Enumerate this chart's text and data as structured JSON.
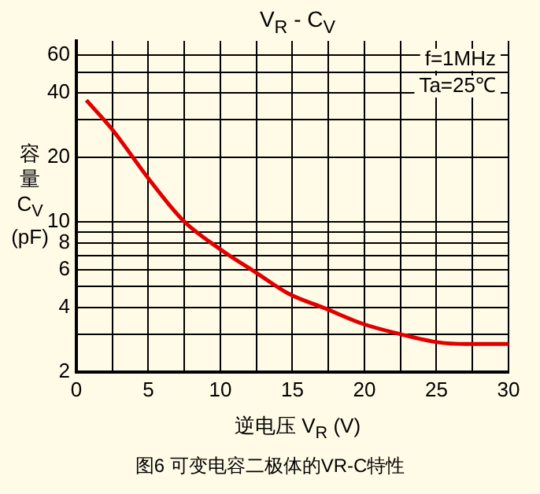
{
  "chart_data": {
    "type": "line",
    "title": "V$_{R}$ - C$_{V}$",
    "xlabel": "逆电压 V$_{R}$ (V)",
    "ylabel": "容量 C$_{V}$ (pF)",
    "annotations": [
      "f=1MHz",
      "Ta=25℃",
      "图6 可变电容二极体的VR-C特性"
    ],
    "x": [
      0.7,
      2.5,
      5,
      7.4,
      10.2,
      12.5,
      14.7,
      17.3,
      19.9,
      22.5,
      25.1,
      27,
      30
    ],
    "series": [
      {
        "color": "#e00000",
        "values": [
          37,
          27,
          16,
          10.2,
          7.3,
          5.8,
          4.65,
          3.95,
          3.35,
          3,
          2.75,
          2.7,
          2.7
        ]
      }
    ],
    "xlim": [
      0,
      30
    ],
    "xticks": [
      0,
      {
        "value": 2.5,
        "label": null
      },
      5,
      {
        "value": 7.5,
        "label": null
      },
      10,
      {
        "value": 12.5,
        "label": null
      },
      15,
      {
        "value": 17.5,
        "label": null
      },
      20,
      {
        "value": 22.5,
        "label": null
      },
      25,
      {
        "value": 27.5,
        "label": null
      },
      30
    ],
    "ylim": [
      2,
      70
    ],
    "yticks": [
      2,
      {
        "value": 3,
        "label": null
      },
      4,
      {
        "value": 5,
        "label": null
      },
      6,
      {
        "value": 7,
        "label": null
      },
      8,
      {
        "value": 9,
        "label": null
      },
      10,
      20,
      {
        "value": 30,
        "label": null
      },
      40,
      {
        "value": 50,
        "label": null
      },
      60
    ],
    "log": "y",
    "grid": true,
    "legend": false,
    "marker": "none",
    "line_style": "solid"
  }
}
